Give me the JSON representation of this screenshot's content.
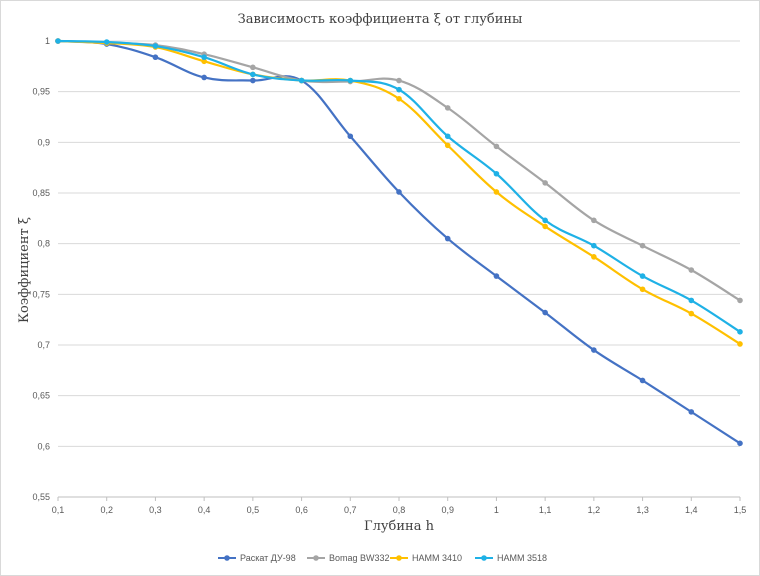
{
  "chart_data": {
    "type": "line",
    "title": "Зависимость коэффициента ξ от глубины",
    "xlabel": "Глубина h",
    "ylabel": "Коэффициент ξ",
    "x": [
      0.1,
      0.2,
      0.3,
      0.4,
      0.5,
      0.6,
      0.7,
      0.8,
      0.9,
      1.0,
      1.1,
      1.2,
      1.3,
      1.4,
      1.5
    ],
    "x_tick_labels": [
      "0,1",
      "0,2",
      "0,3",
      "0,4",
      "0,5",
      "0,6",
      "0,7",
      "0,8",
      "0,9",
      "1",
      "1,1",
      "1,2",
      "1,3",
      "1,4",
      "1,5"
    ],
    "y_ticks": [
      0.55,
      0.6,
      0.65,
      0.7,
      0.75,
      0.8,
      0.85,
      0.9,
      0.95,
      1.0
    ],
    "y_tick_labels": [
      "0,55",
      "0,6",
      "0,65",
      "0,7",
      "0,75",
      "0,8",
      "0,85",
      "0,9",
      "0,95",
      "1"
    ],
    "ylim": [
      0.55,
      1.0
    ],
    "grid": "horizontal",
    "legend_position": "bottom",
    "series": [
      {
        "name": "Раскат ДУ-98",
        "color": "#4472c4",
        "values": [
          1.0,
          0.997,
          0.984,
          0.964,
          0.961,
          0.961,
          0.906,
          0.851,
          0.805,
          0.768,
          0.732,
          0.695,
          0.665,
          0.634,
          0.603
        ]
      },
      {
        "name": "Bomag BW332",
        "color": "#a5a5a5",
        "values": [
          1.0,
          0.998,
          0.996,
          0.987,
          0.974,
          0.961,
          0.96,
          0.961,
          0.934,
          0.896,
          0.86,
          0.823,
          0.798,
          0.774,
          0.744
        ]
      },
      {
        "name": "HAMM 3410",
        "color": "#ffc000",
        "values": [
          1.0,
          0.998,
          0.994,
          0.98,
          0.967,
          0.961,
          0.961,
          0.943,
          0.897,
          0.851,
          0.817,
          0.787,
          0.755,
          0.731,
          0.701
        ]
      },
      {
        "name": "HAMM 3518",
        "color": "#1fb1e6",
        "values": [
          1.0,
          0.999,
          0.995,
          0.984,
          0.967,
          0.961,
          0.961,
          0.952,
          0.906,
          0.869,
          0.823,
          0.798,
          0.768,
          0.744,
          0.713
        ]
      }
    ]
  }
}
